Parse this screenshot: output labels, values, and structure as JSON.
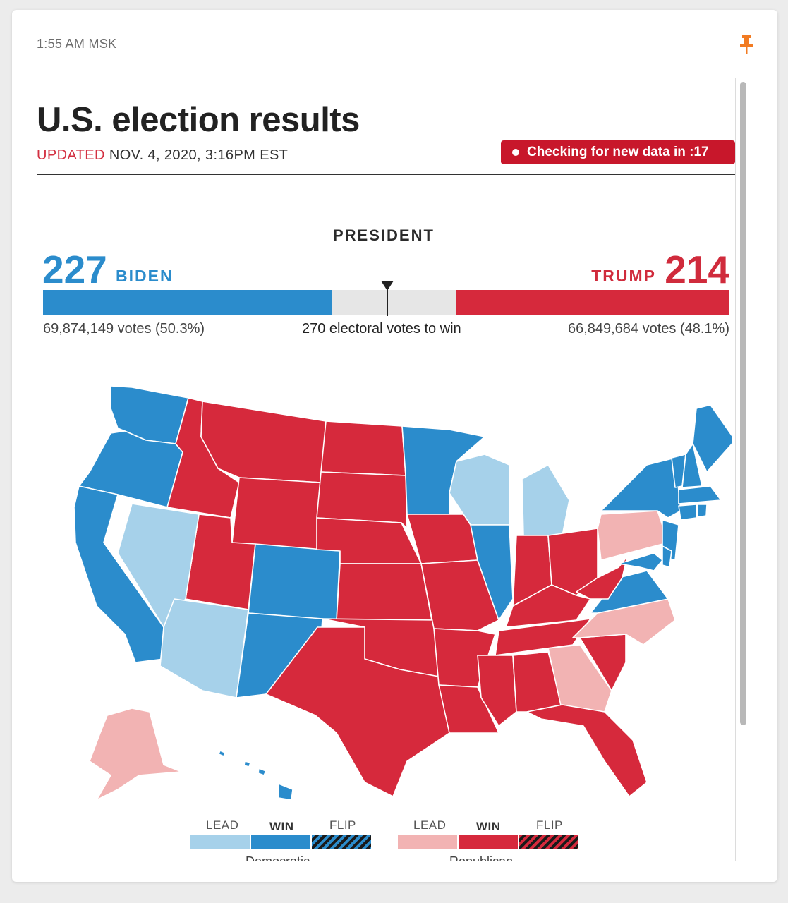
{
  "time": "1:55 AM MSK",
  "title": "U.S. election results",
  "updated": {
    "label": "UPDATED",
    "timestamp": "NOV. 4, 2020, 3:16PM EST"
  },
  "status": {
    "checking": "Checking for new data in :17"
  },
  "race": {
    "office": "PRESIDENT",
    "threshold": 270,
    "total_ev": 538,
    "threshold_text": "270 electoral votes to win",
    "democrat": {
      "name": "BIDEN",
      "ev": "227",
      "ev_value": 227,
      "votes": "69,874,149 votes (50.3%)"
    },
    "republican": {
      "name": "TRUMP",
      "ev": "214",
      "ev_value": 214,
      "votes": "66,849,684 votes (48.1%)"
    }
  },
  "legend": {
    "captions": [
      "LEAD",
      "WIN",
      "FLIP"
    ],
    "democratic_label": "Democratic",
    "republican_label": "Republican"
  },
  "states": {
    "dem_win": [
      "WA",
      "OR",
      "CA",
      "CO",
      "NM",
      "MN",
      "IL",
      "VA",
      "NY",
      "VT",
      "NH",
      "ME",
      "MA",
      "CT",
      "RI",
      "NJ",
      "DE",
      "MD",
      "DC",
      "HI"
    ],
    "dem_lead": [
      "NV",
      "AZ",
      "WI",
      "MI"
    ],
    "rep_win": [
      "ID",
      "MT",
      "WY",
      "UT",
      "ND",
      "SD",
      "NE",
      "KS",
      "OK",
      "TX",
      "IA",
      "MO",
      "AR",
      "LA",
      "MS",
      "AL",
      "TN",
      "KY",
      "IN",
      "OH",
      "WV",
      "SC",
      "FL"
    ],
    "rep_lead": [
      "PA",
      "NC",
      "GA",
      "AK"
    ]
  },
  "colors": {
    "dem_win": "#2b8ccc",
    "dem_lead": "#a6d1ea",
    "rep_win": "#d6293c",
    "rep_lead": "#f2b3b3",
    "accent": "#f27b22"
  },
  "icons": {
    "pin": "pushpin-icon",
    "dot": "live-dot-icon"
  }
}
